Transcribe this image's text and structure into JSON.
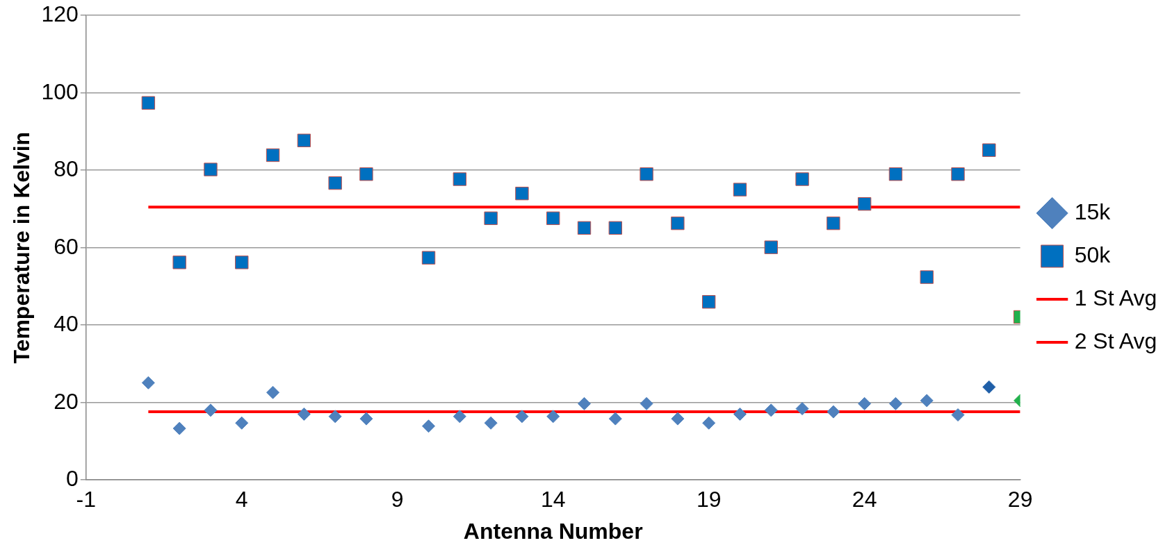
{
  "chart_data": {
    "type": "scatter",
    "xlabel": "Antenna Number",
    "ylabel": "Temperature in Kelvin",
    "xlim": [
      -1,
      29
    ],
    "xticks": [
      -1,
      4,
      9,
      14,
      19,
      24,
      29
    ],
    "ylim": [
      0,
      120
    ],
    "yticks": [
      0,
      20,
      40,
      60,
      80,
      100,
      120
    ],
    "grid": "y",
    "legend": "right",
    "series": [
      {
        "name": "15k",
        "type": "scatter",
        "marker": "diamond",
        "color": "#4f81bd",
        "x": [
          1,
          2,
          3,
          4,
          5,
          6,
          7,
          8,
          10,
          11,
          12,
          13,
          14,
          15,
          16,
          17,
          18,
          19,
          20,
          21,
          22,
          23,
          24,
          25,
          26,
          27,
          28,
          29
        ],
        "values": [
          25.1,
          13.3,
          18,
          14.7,
          22.6,
          17,
          16.4,
          15.8,
          13.9,
          16.4,
          14.7,
          16.4,
          16.4,
          19.7,
          15.8,
          19.7,
          15.8,
          14.7,
          17,
          18,
          18.4,
          17.6,
          19.7,
          19.7,
          20.5,
          16.8,
          24,
          20.5
        ],
        "colors": [
          "#4f81bd",
          "#4f81bd",
          "#4f81bd",
          "#4f81bd",
          "#4f81bd",
          "#4f81bd",
          "#4f81bd",
          "#4f81bd",
          "#4f81bd",
          "#4f81bd",
          "#4f81bd",
          "#4f81bd",
          "#4f81bd",
          "#4f81bd",
          "#4f81bd",
          "#4f81bd",
          "#4f81bd",
          "#4f81bd",
          "#4f81bd",
          "#4f81bd",
          "#4f81bd",
          "#4f81bd",
          "#4f81bd",
          "#4f81bd",
          "#4f81bd",
          "#4f81bd",
          "#1f5fa8",
          "#22b14c"
        ]
      },
      {
        "name": "50k",
        "type": "scatter",
        "marker": "square",
        "color": "#0070c0",
        "x": [
          1,
          2,
          3,
          4,
          5,
          6,
          7,
          8,
          10,
          11,
          12,
          13,
          14,
          15,
          16,
          17,
          18,
          19,
          20,
          21,
          22,
          23,
          24,
          25,
          26,
          27,
          28,
          29
        ],
        "values": [
          97.4,
          56.2,
          80.2,
          56.2,
          83.9,
          87.7,
          76.7,
          79,
          57.4,
          77.7,
          67.6,
          74,
          67.6,
          65.1,
          65.1,
          79,
          66.3,
          46,
          75,
          60.1,
          77.7,
          66.3,
          71.3,
          79,
          52.4,
          79,
          85.2,
          42.1
        ],
        "colors": [
          "#0070c0",
          "#0070c0",
          "#0070c0",
          "#0070c0",
          "#0070c0",
          "#0070c0",
          "#0070c0",
          "#0070c0",
          "#0070c0",
          "#0070c0",
          "#0070c0",
          "#0070c0",
          "#0070c0",
          "#0070c0",
          "#0070c0",
          "#0070c0",
          "#0070c0",
          "#0070c0",
          "#0070c0",
          "#0070c0",
          "#0070c0",
          "#0070c0",
          "#0070c0",
          "#0070c0",
          "#0070c0",
          "#0070c0",
          "#0070c0",
          "#22b14c"
        ]
      },
      {
        "name": "1 St Avg",
        "type": "line",
        "marker": "none",
        "line_style": "solid",
        "color": "#ff0000",
        "x": [
          1,
          29
        ],
        "values": [
          70.5,
          70.5
        ]
      },
      {
        "name": "2 St Avg",
        "type": "line",
        "marker": "none",
        "line_style": "solid",
        "color": "#ff0000",
        "x": [
          1,
          29
        ],
        "values": [
          17.6,
          17.6
        ]
      }
    ]
  }
}
